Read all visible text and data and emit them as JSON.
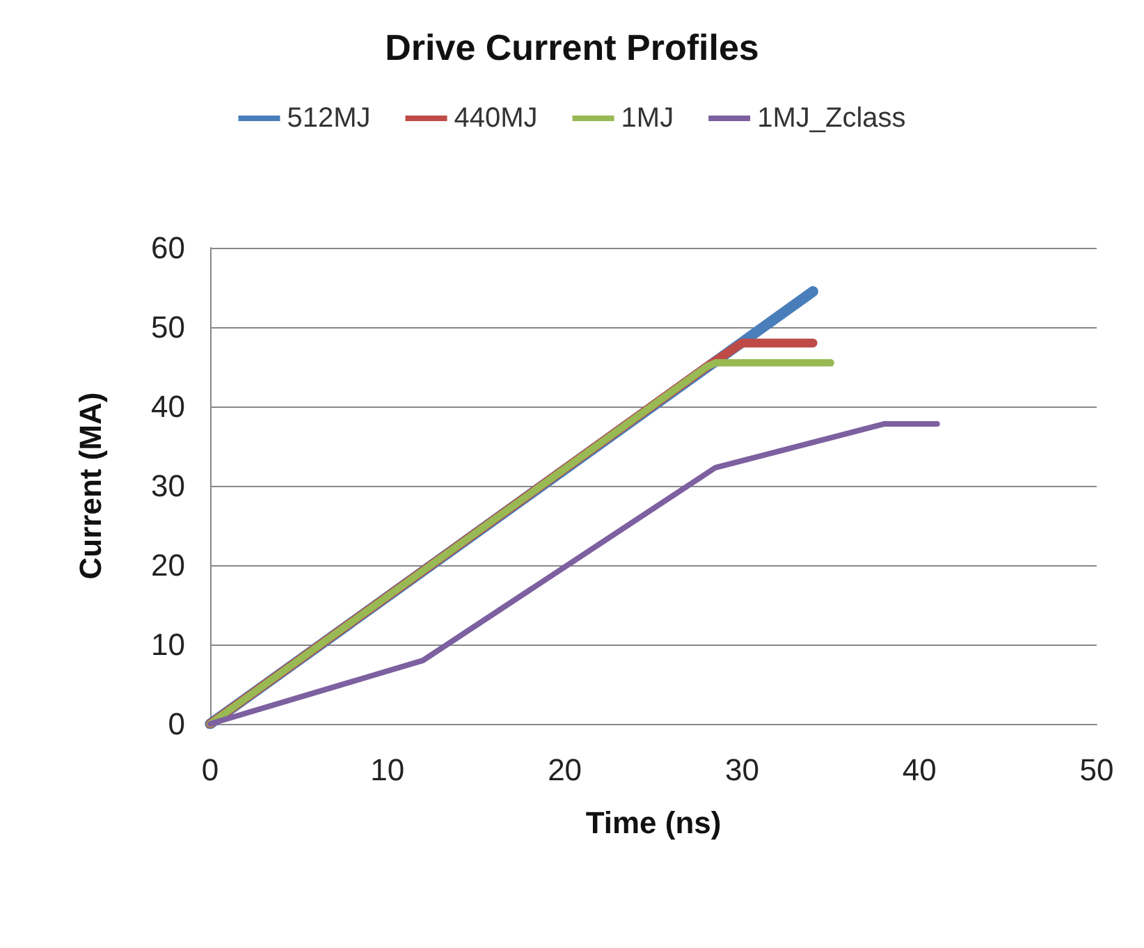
{
  "chart_data": {
    "type": "line",
    "title": "Drive Current Profiles",
    "xlabel": "Time (ns)",
    "ylabel": "Current (MA)",
    "xlim": [
      0,
      50
    ],
    "xticks": [
      0,
      10,
      20,
      30,
      40,
      50
    ],
    "ylim": [
      0,
      60
    ],
    "yticks": [
      0,
      10,
      20,
      30,
      40,
      50,
      60
    ],
    "grid": "y",
    "legend": "top",
    "marker": "none",
    "line_style": "solid",
    "series": [
      {
        "name": "512MJ",
        "color": "#4a7ebb",
        "x": [
          0,
          34
        ],
        "values": [
          0,
          54.5
        ]
      },
      {
        "name": "440MJ",
        "color": "#be4b48",
        "x": [
          0,
          28,
          30,
          34
        ],
        "values": [
          0,
          45,
          48,
          48
        ]
      },
      {
        "name": "1MJ",
        "color": "#98b954",
        "x": [
          0,
          28,
          28.5,
          35
        ],
        "values": [
          0,
          45,
          45.5,
          45.5
        ]
      },
      {
        "name": "1MJ_Zclass",
        "color": "#7d60a0",
        "x": [
          0,
          12,
          28.5,
          38,
          41
        ],
        "values": [
          0,
          8,
          32.3,
          37.8,
          37.8
        ]
      }
    ]
  }
}
